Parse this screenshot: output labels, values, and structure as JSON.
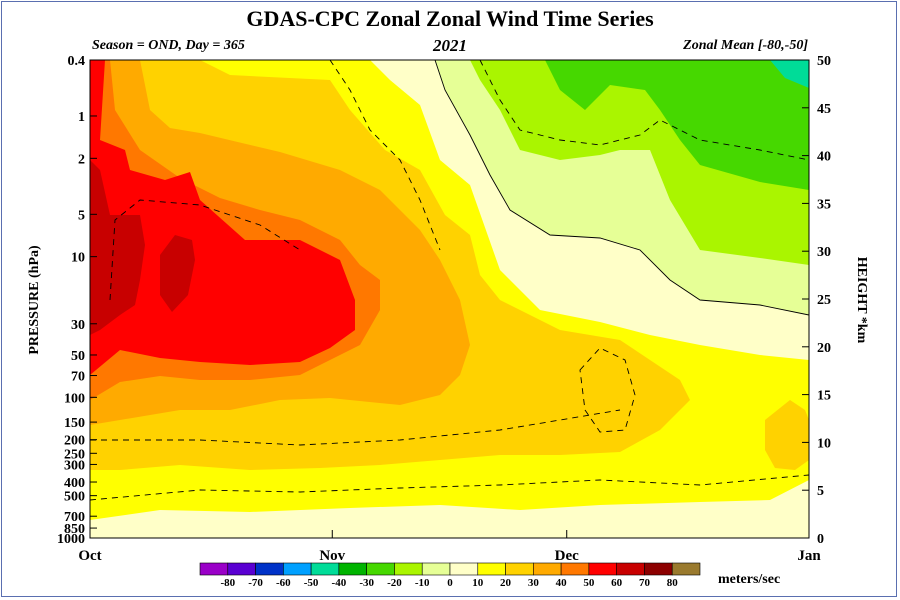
{
  "header": {
    "title": "GDAS-CPC Zonal Zonal Wind Time Series",
    "season": "Season = OND, Day = 365",
    "year": "2021",
    "region": "Zonal Mean [-80,-50]"
  },
  "colorbar": {
    "units": "meters/sec",
    "ticks": [
      "-80",
      "-70",
      "-60",
      "-50",
      "-40",
      "-30",
      "-20",
      "-10",
      "0",
      "10",
      "20",
      "30",
      "40",
      "50",
      "60",
      "70",
      "80"
    ],
    "colors": [
      "#9a00c8",
      "#5a00d2",
      "#0032c8",
      "#00a0ff",
      "#00dc98",
      "#00b400",
      "#46d800",
      "#aaf500",
      "#e6ff96",
      "#ffffc8",
      "#ffff00",
      "#ffd200",
      "#ffaa00",
      "#ff7800",
      "#ff0000",
      "#c80000",
      "#8c0000",
      "#9a7a2e"
    ]
  },
  "chart_data": {
    "type": "heatmap",
    "title": "GDAS-CPC Zonal Zonal Wind Time Series",
    "ylabel": "PRESSURE (hPa)",
    "y2label": "HEIGHT *km",
    "x_ticks": [
      "Oct",
      "Nov",
      "Dec",
      "Jan"
    ],
    "y_ticks": [
      "0.4",
      "1",
      "2",
      "5",
      "10",
      "30",
      "50",
      "70",
      "100",
      "150",
      "200",
      "250",
      "300",
      "400",
      "500",
      "700",
      "850",
      "1000"
    ],
    "y2_ticks": [
      "0",
      "5",
      "10",
      "15",
      "20",
      "25",
      "30",
      "35",
      "40",
      "45",
      "50"
    ],
    "ylim_hpa": [
      1000,
      0.4
    ],
    "y2lim_km": [
      0,
      50
    ],
    "contour_interval_ms": 10,
    "scale": "log-pressure"
  }
}
